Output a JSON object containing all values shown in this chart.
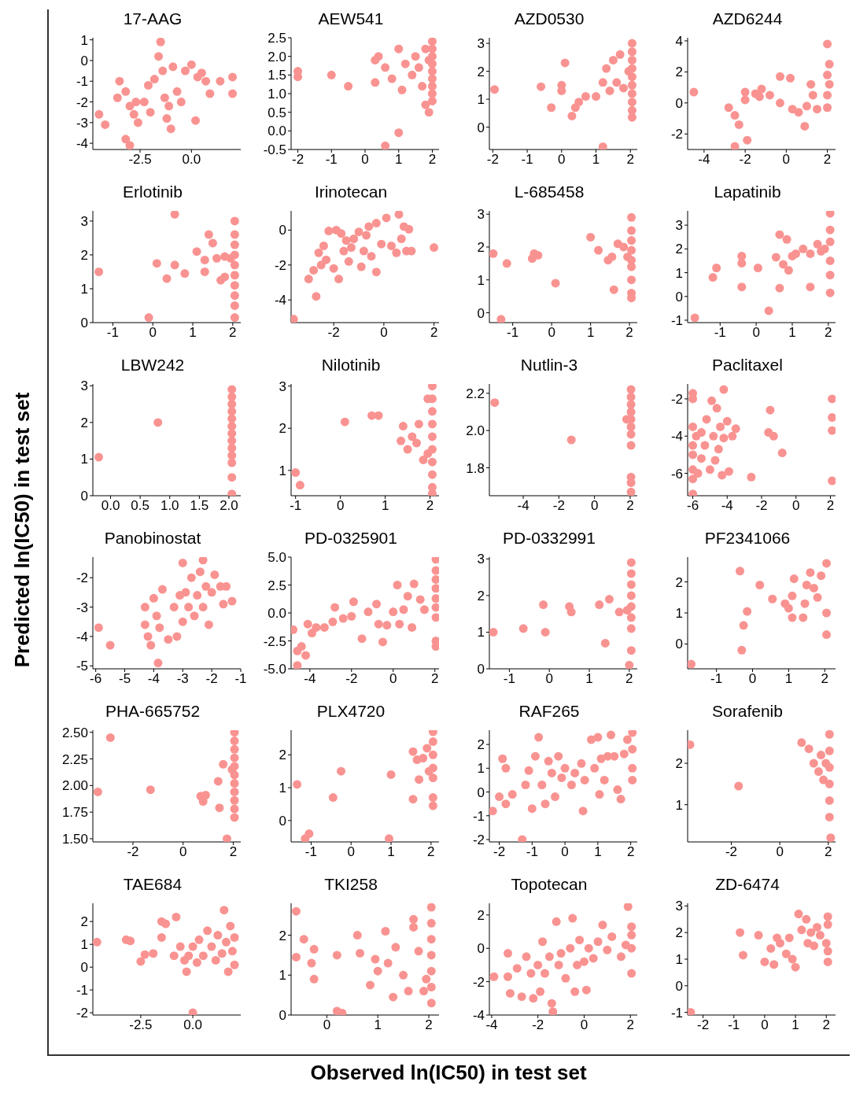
{
  "chart_data": [
    {
      "type": "scatter",
      "title": "17-AAG",
      "color": "#f99391",
      "xlim": [
        -4.8,
        2.4
      ],
      "xticks": [
        {
          "value": -2.5,
          "label": "-2.5"
        },
        {
          "value": 0,
          "label": "0.0"
        }
      ],
      "ylim": [
        -4.3,
        1.1
      ],
      "yticks": [
        -4,
        -3,
        -2,
        -1,
        0,
        1
      ],
      "x": [
        -4.5,
        -4.2,
        -3.5,
        -3.6,
        -3.2,
        -3.0,
        -2.8,
        -2.6,
        -2.3,
        -2.1,
        -2.0,
        -1.8,
        -1.6,
        -1.5,
        -1.4,
        -1.3,
        -1.1,
        -1.0,
        -0.9,
        -0.7,
        -0.5,
        -0.3,
        0.0,
        0.2,
        0.3,
        0.7,
        0.9,
        1.4,
        2.0,
        2.0,
        -3.2,
        -3.0,
        -2.7,
        -1.2,
        0.5
      ],
      "values": [
        -2.6,
        -3.1,
        -1.0,
        -1.8,
        -1.5,
        -2.2,
        -2.6,
        -3.0,
        -2.0,
        -1.2,
        -2.5,
        -0.9,
        0.2,
        0.9,
        -0.5,
        -1.8,
        -2.2,
        -3.3,
        -0.3,
        -1.5,
        -2.0,
        -0.5,
        -0.2,
        -2.9,
        -0.8,
        -1.0,
        -1.6,
        -1.0,
        -0.8,
        -1.6,
        -3.8,
        -4.1,
        -2.0,
        -2.8,
        -0.6
      ]
    },
    {
      "type": "scatter",
      "title": "AEW541",
      "color": "#f99391",
      "xlim": [
        -2.2,
        2.2
      ],
      "xticks": [
        -2,
        -1,
        0,
        1,
        2
      ],
      "ylim": [
        -0.5,
        2.5
      ],
      "yticks": [
        {
          "value": -0.5,
          "label": "-0.5"
        },
        {
          "value": 0,
          "label": "0.0"
        },
        {
          "value": 0.5,
          "label": "0.5"
        },
        {
          "value": 1,
          "label": "1.0"
        },
        {
          "value": 1.5,
          "label": "1.5"
        },
        {
          "value": 2,
          "label": "2.0"
        },
        {
          "value": 2.5,
          "label": "2.5"
        }
      ],
      "x": [
        -2,
        -2,
        -1,
        -0.5,
        0.3,
        0.4,
        0.3,
        0.6,
        1.0,
        0.6,
        0.8,
        1,
        1.1,
        1.2,
        1.4,
        1.5,
        1.6,
        1.7,
        1.8,
        1.9,
        2,
        2,
        2,
        2,
        2,
        2,
        2,
        2,
        2,
        1.9,
        1.8
      ],
      "values": [
        1.6,
        1.45,
        1.5,
        1.2,
        1.9,
        2.0,
        1.3,
        -0.4,
        -0.05,
        1.7,
        1.4,
        2.2,
        1.1,
        1.8,
        1.5,
        2.0,
        1.7,
        1.2,
        0.7,
        0.5,
        2.4,
        2.2,
        2.0,
        1.8,
        1.6,
        1.4,
        1.2,
        1.0,
        0.8,
        1.9,
        2.2
      ]
    },
    {
      "type": "scatter",
      "title": "AZD0530",
      "color": "#f99391",
      "xlim": [
        -2.1,
        2.2
      ],
      "xticks": [
        -2,
        -1,
        0,
        1,
        2
      ],
      "ylim": [
        -0.8,
        3.2
      ],
      "yticks": [
        0,
        1,
        2,
        3
      ],
      "x": [
        -1.95,
        -0.6,
        0,
        0,
        0.1,
        -0.3,
        0.3,
        0.4,
        0.5,
        0.7,
        1.0,
        1.2,
        1.2,
        1.3,
        1.4,
        1.5,
        1.6,
        1.7,
        1.8,
        2.05,
        2.05,
        2.05,
        2.05,
        2.05,
        2.05,
        2.05,
        2.05,
        2.05,
        2.05,
        1.95
      ],
      "values": [
        1.35,
        1.45,
        1.5,
        1.3,
        2.3,
        0.7,
        0.4,
        0.7,
        0.9,
        1.1,
        1.1,
        -0.7,
        1.6,
        2.1,
        1.3,
        2.4,
        1.6,
        2.6,
        1.4,
        3.0,
        2.7,
        2.4,
        2.1,
        1.8,
        1.5,
        1.2,
        0.9,
        0.6,
        0.35,
        2.0
      ]
    },
    {
      "type": "scatter",
      "title": "AZD6244",
      "color": "#f99391",
      "xlim": [
        -4.8,
        2.4
      ],
      "xticks": [
        -4,
        -2,
        0,
        2
      ],
      "ylim": [
        -3,
        4.2
      ],
      "yticks": [
        -2,
        0,
        2,
        4
      ],
      "x": [
        -4.5,
        -2.8,
        -2.5,
        -2.3,
        -2.5,
        -1.9,
        -2.0,
        -2.0,
        -1.5,
        -1.2,
        -1.3,
        -0.8,
        -0.3,
        -0.3,
        0.2,
        0.3,
        0.6,
        0.9,
        1.0,
        1.2,
        1.3,
        1.5,
        2,
        2,
        2,
        2,
        2.1,
        2.1
      ],
      "values": [
        0.7,
        -0.3,
        -0.8,
        -1.4,
        -2.8,
        -2.4,
        0.7,
        0.2,
        0.6,
        0.9,
        0.4,
        0.5,
        0.0,
        1.7,
        1.6,
        -0.4,
        -0.6,
        -1.5,
        -0.2,
        1.2,
        0.5,
        -0.4,
        3.8,
        1.8,
        0.5,
        -0.3,
        1.2,
        2.5
      ]
    },
    {
      "type": "scatter",
      "title": "Erlotinib",
      "color": "#f99391",
      "xlim": [
        -1.5,
        2.2
      ],
      "xticks": [
        -1,
        0,
        1,
        2
      ],
      "ylim": [
        0,
        3.3
      ],
      "yticks": [
        0,
        1,
        2,
        3
      ],
      "x": [
        -1.35,
        -0.1,
        0.1,
        0.35,
        0.55,
        0.55,
        0.8,
        1.1,
        1.3,
        1.3,
        1.4,
        1.5,
        1.6,
        1.7,
        1.8,
        1.8,
        2.05,
        2.05,
        2.05,
        2.05,
        2.05,
        2.05,
        2.05,
        2.05,
        2.05,
        2.05,
        1.95
      ],
      "values": [
        1.5,
        0.15,
        1.75,
        1.3,
        1.7,
        3.2,
        1.45,
        2.1,
        1.5,
        1.85,
        2.6,
        2.35,
        1.9,
        1.25,
        1.35,
        1.95,
        3.0,
        2.6,
        2.3,
        2.0,
        1.7,
        1.4,
        1.1,
        0.8,
        0.5,
        0.15,
        1.9
      ]
    },
    {
      "type": "scatter",
      "title": "Irinotecan",
      "color": "#f99391",
      "xlim": [
        -3.7,
        2.2
      ],
      "xticks": [
        -2,
        0,
        2
      ],
      "ylim": [
        -5.3,
        1.1
      ],
      "yticks": [
        -4,
        -2,
        0
      ],
      "x": [
        -3.6,
        -3.0,
        -2.7,
        -2.8,
        -2.6,
        -2.5,
        -2.4,
        -2.3,
        -2.2,
        -2.0,
        -1.9,
        -1.8,
        -1.7,
        -1.6,
        -1.5,
        -1.4,
        -1.3,
        -1.2,
        -1.0,
        -0.9,
        -0.8,
        -0.7,
        -0.6,
        -0.5,
        -0.3,
        -0.3,
        -0.1,
        0.1,
        0.3,
        0.5,
        0.6,
        0.7,
        0.8,
        0.9,
        1.0,
        1.1,
        2.0
      ],
      "values": [
        -5.1,
        -2.8,
        -3.8,
        -2.3,
        -1.3,
        -2.0,
        -0.9,
        -1.7,
        -0.05,
        -2.2,
        0.0,
        -2.8,
        -0.2,
        -1.2,
        -0.6,
        -1.8,
        -1.0,
        -0.5,
        -0.1,
        -2.1,
        -1.2,
        -0.3,
        0.2,
        -1.5,
        -2.4,
        0.4,
        -0.8,
        0.7,
        -0.9,
        -1.3,
        0.9,
        -0.5,
        0.2,
        -1.2,
        0.05,
        -1.2,
        -1.0
      ]
    },
    {
      "type": "scatter",
      "title": "L-685458",
      "color": "#f99391",
      "xlim": [
        -1.6,
        2.2
      ],
      "xticks": [
        -1,
        0,
        1,
        2
      ],
      "ylim": [
        -0.3,
        3.1
      ],
      "yticks": [
        0,
        1,
        2,
        3
      ],
      "x": [
        -1.5,
        -1.3,
        -1.15,
        -0.5,
        -0.45,
        -0.35,
        0.1,
        1.0,
        1.2,
        1.45,
        1.55,
        1.6,
        1.7,
        1.85,
        2.05,
        2.05,
        2.05,
        2.05,
        2.05,
        2.05,
        2.05,
        2.05,
        2.05,
        1.95
      ],
      "values": [
        1.8,
        -0.2,
        1.5,
        1.65,
        1.8,
        1.75,
        0.9,
        2.3,
        1.9,
        1.6,
        1.7,
        0.7,
        2.1,
        2.0,
        2.9,
        2.5,
        2.2,
        1.9,
        1.6,
        1.4,
        1.0,
        0.6,
        0.45,
        1.7
      ]
    },
    {
      "type": "scatter",
      "title": "Lapatinib",
      "color": "#f99391",
      "xlim": [
        -1.9,
        2.2
      ],
      "xticks": [
        -1,
        0,
        1,
        2
      ],
      "ylim": [
        -1.1,
        3.6
      ],
      "yticks": [
        -1,
        0,
        1,
        2,
        3
      ],
      "x": [
        -1.7,
        -1.2,
        -1.1,
        -0.4,
        -0.4,
        -0.4,
        0.05,
        0.35,
        0.55,
        0.65,
        0.65,
        0.75,
        0.85,
        0.9,
        1.0,
        1.1,
        1.3,
        1.5,
        1.5,
        1.7,
        1.8,
        1.9,
        2.05,
        2.05,
        2.05,
        2.05,
        2.05,
        2.05
      ],
      "values": [
        -0.9,
        0.8,
        1.2,
        1.4,
        1.7,
        0.4,
        1.2,
        -0.6,
        1.65,
        2.6,
        0.35,
        1.35,
        2.4,
        1.1,
        1.7,
        1.8,
        2.0,
        0.4,
        1.8,
        2.2,
        1.9,
        2.0,
        3.5,
        2.8,
        2.3,
        1.5,
        0.9,
        0.15
      ]
    },
    {
      "type": "scatter",
      "title": "LBW242",
      "color": "#f99391",
      "xlim": [
        -0.3,
        2.2
      ],
      "xticks": [
        {
          "value": 0,
          "label": "0.0"
        },
        {
          "value": 0.5,
          "label": "0.5"
        },
        {
          "value": 1,
          "label": "1.0"
        },
        {
          "value": 1.5,
          "label": "1.5"
        },
        {
          "value": 2,
          "label": "2.0"
        }
      ],
      "ylim": [
        0,
        3.05
      ],
      "yticks": [
        0,
        1,
        2,
        3
      ],
      "x": [
        -0.2,
        0.8,
        2.05,
        2.05,
        2.05,
        2.05,
        2.05,
        2.05,
        2.05,
        2.05,
        2.05,
        2.05,
        2.05,
        2.05,
        2.05
      ],
      "values": [
        1.05,
        2.0,
        2.9,
        2.7,
        2.5,
        2.3,
        2.1,
        1.9,
        1.7,
        1.5,
        1.3,
        1.1,
        0.9,
        0.5,
        0.05
      ]
    },
    {
      "type": "scatter",
      "title": "Nilotinib",
      "color": "#f99391",
      "xlim": [
        -1.1,
        2.2
      ],
      "xticks": [
        -1,
        0,
        1,
        2
      ],
      "ylim": [
        0.4,
        3.05
      ],
      "yticks": [
        1,
        2,
        3
      ],
      "x": [
        -1.0,
        -0.9,
        0.1,
        0.7,
        0.85,
        1.4,
        1.35,
        1.5,
        1.6,
        1.7,
        1.75,
        1.85,
        2.05,
        2.05,
        2.05,
        2.05,
        2.05,
        2.05,
        2.05,
        2.05,
        2.05,
        2.05,
        1.95,
        1.95
      ],
      "values": [
        0.95,
        0.65,
        2.15,
        2.3,
        2.3,
        2.05,
        1.7,
        1.5,
        1.8,
        1.65,
        2.1,
        1.25,
        3.0,
        2.7,
        2.4,
        2.1,
        1.8,
        1.5,
        1.2,
        0.9,
        0.6,
        0.45,
        2.7,
        1.4
      ]
    },
    {
      "type": "scatter",
      "title": "Nutlin-3",
      "color": "#f99391",
      "xlim": [
        -5.9,
        2.4
      ],
      "xticks": [
        -4,
        -2,
        0,
        2
      ],
      "ylim": [
        1.65,
        2.25
      ],
      "yticks": [
        {
          "value": 1.8,
          "label": "1.8"
        },
        {
          "value": 2,
          "label": "2.0"
        },
        {
          "value": 2.2,
          "label": "2.2"
        }
      ],
      "x": [
        -5.6,
        -1.3,
        1.8,
        2.05,
        2.05,
        2.05,
        2.05,
        2.05,
        2.05,
        2.05,
        2.05,
        2.05,
        2.05,
        2.05
      ],
      "values": [
        2.15,
        1.95,
        2.06,
        2.22,
        2.18,
        2.14,
        2.1,
        2.06,
        2.02,
        1.98,
        1.92,
        1.75,
        1.72,
        1.67
      ]
    },
    {
      "type": "scatter",
      "title": "Paclitaxel",
      "color": "#f99391",
      "xlim": [
        -6.3,
        2.3
      ],
      "xticks": [
        -6,
        -4,
        -2,
        0,
        2
      ],
      "ylim": [
        -7.2,
        -1.2
      ],
      "yticks": [
        -6,
        -4,
        -2
      ],
      "x": [
        -6,
        -6,
        -6,
        -6,
        -6,
        -6,
        -6,
        -6,
        -5.8,
        -5.7,
        -5.5,
        -5.5,
        -5.3,
        -5.2,
        -5.0,
        -4.9,
        -4.8,
        -4.7,
        -4.6,
        -4.5,
        -4.4,
        -4.3,
        -4.2,
        -4.2,
        -4.0,
        -3.9,
        -3.7,
        -3.5,
        -2.6,
        -1.5,
        -1.6,
        -1.3,
        -0.8,
        2.1,
        2.1,
        2.1,
        2.1
      ],
      "values": [
        -1.7,
        -2.0,
        -3.5,
        -4.5,
        -5.0,
        -5.8,
        -6.3,
        -7.1,
        -4.0,
        -6.0,
        -3.8,
        -5.2,
        -4.5,
        -3.1,
        -5.8,
        -2.1,
        -4.0,
        -5.3,
        -2.5,
        -4.7,
        -3.5,
        -6.1,
        -1.5,
        -4.1,
        -3.2,
        -5.9,
        -4.0,
        -3.6,
        -6.2,
        -2.6,
        -3.8,
        -4.0,
        -4.9,
        -2.0,
        -3.0,
        -3.7,
        -6.4
      ]
    },
    {
      "type": "scatter",
      "title": "Panobinostat",
      "color": "#f99391",
      "xlim": [
        -6.1,
        -1
      ],
      "xticks": [
        -6,
        -5,
        -4,
        -3,
        -2,
        -1
      ],
      "ylim": [
        -5.1,
        -1.3
      ],
      "yticks": [
        -5,
        -4,
        -3,
        -2
      ],
      "x": [
        -5.9,
        -5.5,
        -4.3,
        -4.3,
        -4.2,
        -4.1,
        -4.0,
        -3.9,
        -3.85,
        -3.8,
        -3.7,
        -3.5,
        -3.3,
        -3.2,
        -3.1,
        -3.0,
        -3.0,
        -2.9,
        -2.8,
        -2.7,
        -2.6,
        -2.5,
        -2.4,
        -2.3,
        -2.2,
        -2.1,
        -2.0,
        -1.9,
        -1.7,
        -1.6,
        -1.5,
        -1.3,
        -2.3
      ],
      "values": [
        -3.7,
        -4.3,
        -3.0,
        -3.6,
        -4.0,
        -4.3,
        -2.7,
        -3.3,
        -4.9,
        -3.7,
        -2.4,
        -4.1,
        -3.0,
        -4.0,
        -2.6,
        -3.5,
        -1.5,
        -2.5,
        -3.0,
        -2.0,
        -3.3,
        -2.6,
        -1.8,
        -3.0,
        -2.3,
        -3.6,
        -2.5,
        -1.9,
        -2.3,
        -2.9,
        -2.3,
        -2.8,
        -1.4
      ]
    },
    {
      "type": "scatter",
      "title": "PD-0325901",
      "color": "#f99391",
      "xlim": [
        -4.9,
        2.2
      ],
      "xticks": [
        -4,
        -2,
        0,
        2
      ],
      "ylim": [
        -5,
        5
      ],
      "yticks": [
        {
          "value": -5,
          "label": "-5.0"
        },
        {
          "value": -2.5,
          "label": "-2.5"
        },
        {
          "value": 0,
          "label": "0.0"
        },
        {
          "value": 2.5,
          "label": "2.5"
        },
        {
          "value": 5,
          "label": "5.0"
        }
      ],
      "x": [
        -4.8,
        -4.6,
        -4.6,
        -4.4,
        -4.2,
        -4.1,
        -3.9,
        -3.7,
        -3.3,
        -2.9,
        -2.8,
        -2.4,
        -2.0,
        -1.9,
        -1.5,
        -1.2,
        -0.8,
        -0.7,
        -0.5,
        -0.3,
        0.0,
        0.2,
        0.3,
        0.5,
        0.7,
        0.9,
        1.0,
        1.3,
        1.5,
        2.05,
        2.05,
        2.05,
        2.05,
        2.05,
        2.05,
        2.05,
        2.05,
        2.05
      ],
      "values": [
        -1.5,
        -3.4,
        -4.7,
        -3.0,
        -3.8,
        -1.0,
        -1.8,
        -1.3,
        -1.3,
        -0.8,
        0.5,
        -0.5,
        -0.3,
        1.0,
        -2.3,
        0.1,
        0.8,
        -1.0,
        -2.6,
        -1.1,
        0.1,
        2.5,
        -1.0,
        0.3,
        1.5,
        -1.3,
        2.6,
        1.2,
        0.3,
        4.8,
        3.8,
        3.0,
        2.2,
        1.3,
        0.5,
        -0.4,
        -2.5,
        -3.0
      ]
    },
    {
      "type": "scatter",
      "title": "PD-0332991",
      "color": "#f99391",
      "xlim": [
        -1.5,
        2.2
      ],
      "xticks": [
        -1,
        0,
        1,
        2
      ],
      "ylim": [
        0,
        3.05
      ],
      "yticks": [
        0,
        1,
        2,
        3
      ],
      "x": [
        -1.4,
        -0.65,
        -0.15,
        -0.1,
        0.5,
        0.55,
        1.25,
        1.4,
        1.5,
        1.75,
        2.05,
        2.05,
        2.05,
        2.05,
        2.05,
        2.05,
        2.05,
        2.05,
        2.0,
        1.95
      ],
      "values": [
        1.0,
        1.1,
        1.75,
        1.0,
        1.7,
        1.55,
        1.75,
        0.7,
        1.9,
        1.55,
        2.9,
        2.6,
        2.3,
        2.0,
        1.7,
        1.4,
        1.1,
        0.5,
        0.1,
        1.6
      ]
    },
    {
      "type": "scatter",
      "title": "PF2341066",
      "color": "#f99391",
      "xlim": [
        -1.8,
        2.3
      ],
      "xticks": [
        -1,
        0,
        1,
        2
      ],
      "ylim": [
        -0.8,
        2.8
      ],
      "yticks": [
        0,
        1,
        2
      ],
      "x": [
        -1.7,
        -0.35,
        -0.3,
        -0.25,
        -0.15,
        0.2,
        0.55,
        0.9,
        1.0,
        1.1,
        1.1,
        1.15,
        1.4,
        1.45,
        1.5,
        1.6,
        1.7,
        1.8,
        1.9,
        2.05,
        2.05,
        2.05
      ],
      "values": [
        -0.65,
        2.35,
        -0.2,
        0.6,
        1.05,
        1.9,
        1.45,
        1.3,
        1.15,
        1.55,
        0.85,
        2.1,
        0.85,
        1.3,
        1.9,
        2.3,
        1.8,
        1.5,
        2.2,
        2.6,
        1.0,
        0.3
      ]
    },
    {
      "type": "scatter",
      "title": "PHA-665752",
      "color": "#f99391",
      "xlim": [
        -3.6,
        2.3
      ],
      "xticks": [
        -2,
        0,
        2
      ],
      "ylim": [
        1.47,
        2.52
      ],
      "yticks": [
        {
          "value": 1.5,
          "label": "1.50"
        },
        {
          "value": 1.75,
          "label": "1.75"
        },
        {
          "value": 2,
          "label": "2.00"
        },
        {
          "value": 2.25,
          "label": "2.25"
        },
        {
          "value": 2.5,
          "label": "2.50"
        }
      ],
      "x": [
        -3.4,
        -2.9,
        -1.3,
        0.7,
        0.8,
        0.9,
        1.4,
        1.45,
        1.6,
        1.75,
        2.05,
        2.05,
        2.05,
        2.05,
        2.05,
        2.05,
        2.05,
        2.05,
        2.05,
        2.05,
        2.05,
        1.95
      ],
      "values": [
        1.94,
        2.45,
        1.96,
        1.9,
        1.85,
        1.91,
        2.04,
        1.79,
        2.2,
        1.5,
        2.5,
        2.42,
        2.34,
        2.26,
        2.18,
        2.1,
        2.02,
        1.94,
        1.86,
        1.78,
        1.7,
        2.15
      ]
    },
    {
      "type": "scatter",
      "title": "PLX4720",
      "color": "#f99391",
      "xlim": [
        -1.5,
        2.2
      ],
      "xticks": [
        -1,
        0,
        1,
        2
      ],
      "ylim": [
        -0.65,
        2.75
      ],
      "yticks": [
        0,
        1,
        2
      ],
      "x": [
        -1.35,
        -1.15,
        -1.05,
        -0.45,
        -0.25,
        0.95,
        1.0,
        1.55,
        1.55,
        1.65,
        1.7,
        1.8,
        1.9,
        2.05,
        2.05,
        2.05,
        2.05,
        2.05,
        2.05,
        2.05,
        1.95
      ],
      "values": [
        1.1,
        -0.55,
        -0.4,
        0.7,
        1.5,
        -0.55,
        1.4,
        2.1,
        0.65,
        1.85,
        1.25,
        1.9,
        2.2,
        2.7,
        2.4,
        2.0,
        1.6,
        1.3,
        0.7,
        0.45,
        1.5
      ]
    },
    {
      "type": "scatter",
      "title": "RAF265",
      "color": "#f99391",
      "xlim": [
        -2.3,
        2.2
      ],
      "xticks": [
        -2,
        -1,
        0,
        1,
        2
      ],
      "ylim": [
        -2.1,
        2.6
      ],
      "yticks": [
        -2,
        -1,
        0,
        1,
        2
      ],
      "x": [
        -2.2,
        -2.0,
        -1.9,
        -1.8,
        -1.8,
        -1.6,
        -1.3,
        -1.2,
        -1.1,
        -1.0,
        -0.9,
        -0.8,
        -0.7,
        -0.6,
        -0.5,
        -0.4,
        -0.3,
        -0.2,
        -0.1,
        0.0,
        0.2,
        0.3,
        0.5,
        0.55,
        0.6,
        0.8,
        0.9,
        1.0,
        1.05,
        1.1,
        1.2,
        1.3,
        1.4,
        1.5,
        1.6,
        1.7,
        1.8,
        1.9,
        2.05,
        2.05,
        2.05,
        2.05
      ],
      "values": [
        -0.8,
        -0.2,
        1.4,
        1.0,
        -0.5,
        -0.1,
        -2.0,
        0.3,
        0.9,
        -0.7,
        1.5,
        2.3,
        0.3,
        -0.5,
        1.3,
        0.8,
        -0.2,
        1.5,
        0.6,
        1.0,
        0.3,
        0.8,
        1.2,
        -0.8,
        0.5,
        2.2,
        1.0,
        2.3,
        -0.1,
        1.4,
        0.5,
        1.5,
        2.4,
        1.5,
        0.1,
        -0.3,
        1.6,
        2.2,
        2.5,
        1.8,
        1.0,
        0.5
      ]
    },
    {
      "type": "scatter",
      "title": "Sorafenib",
      "color": "#f99391",
      "xlim": [
        -3.8,
        2.3
      ],
      "xticks": [
        -2,
        0,
        2
      ],
      "ylim": [
        0.1,
        2.8
      ],
      "yticks": [
        1,
        2
      ],
      "x": [
        -3.7,
        -1.7,
        0.9,
        1.2,
        1.4,
        1.6,
        1.7,
        1.8,
        1.9,
        2.05,
        2.05,
        2.05,
        2.05,
        2.05,
        2.05,
        2.1
      ],
      "values": [
        2.45,
        1.45,
        2.5,
        2.35,
        2.0,
        1.8,
        2.2,
        1.6,
        2.0,
        2.7,
        2.3,
        1.9,
        1.5,
        1.1,
        0.7,
        0.2
      ]
    },
    {
      "type": "scatter",
      "title": "TAE684",
      "color": "#f99391",
      "xlim": [
        -4.8,
        2.3
      ],
      "xticks": [
        {
          "value": -2.5,
          "label": "-2.5"
        },
        {
          "value": 0,
          "label": "0.0"
        }
      ],
      "ylim": [
        -2.1,
        2.8
      ],
      "yticks": [
        -2,
        -1,
        0,
        1,
        2
      ],
      "x": [
        -4.6,
        -3.2,
        -3.0,
        -2.5,
        -2.3,
        -1.9,
        -1.5,
        -1.5,
        -1.3,
        -0.8,
        -0.9,
        -0.6,
        -0.4,
        -0.3,
        -0.2,
        0.0,
        0.0,
        0.2,
        0.3,
        0.5,
        0.7,
        0.9,
        1.1,
        1.2,
        1.4,
        1.5,
        1.6,
        1.7,
        1.8,
        1.9,
        2.0,
        2.0
      ],
      "values": [
        1.1,
        1.2,
        1.15,
        0.25,
        0.55,
        0.6,
        1.3,
        2.0,
        1.9,
        2.2,
        0.5,
        0.9,
        0.3,
        -0.2,
        0.5,
        -2.0,
        0.9,
        0.2,
        1.2,
        0.5,
        1.6,
        0.9,
        0.3,
        1.4,
        0.6,
        2.5,
        1.1,
        -0.2,
        1.8,
        0.7,
        1.3,
        0.1
      ]
    },
    {
      "type": "scatter",
      "title": "TKI258",
      "color": "#f99391",
      "xlim": [
        -0.7,
        2.2
      ],
      "xticks": [
        0,
        1,
        2
      ],
      "ylim": [
        0,
        2.8
      ],
      "yticks": [
        0,
        1,
        2
      ],
      "x": [
        -0.6,
        -0.6,
        -0.45,
        -0.3,
        -0.25,
        -0.25,
        0.2,
        0.2,
        0.3,
        0.6,
        0.65,
        0.85,
        0.95,
        1.0,
        1.15,
        1.2,
        1.3,
        1.35,
        1.5,
        1.6,
        1.7,
        1.7,
        1.8,
        1.9,
        2.05,
        2.05,
        2.05,
        2.05,
        2.05,
        2.05,
        2.05,
        1.95
      ],
      "values": [
        2.6,
        1.45,
        1.9,
        1.3,
        0.9,
        1.65,
        1.5,
        0.1,
        0.05,
        2.0,
        1.55,
        0.75,
        1.4,
        1.1,
        2.1,
        1.3,
        0.45,
        1.7,
        1.0,
        0.6,
        2.2,
        2.4,
        1.6,
        0.6,
        2.7,
        2.3,
        1.9,
        1.5,
        1.1,
        0.7,
        0.3,
        0.9
      ]
    },
    {
      "type": "scatter",
      "title": "Topotecan",
      "color": "#f99391",
      "xlim": [
        -4.1,
        2.3
      ],
      "xticks": [
        -4,
        -2,
        0,
        2
      ],
      "ylim": [
        -4,
        2.7
      ],
      "yticks": [
        -4,
        -2,
        0,
        2
      ],
      "x": [
        -3.9,
        -3.3,
        -3.3,
        -3.2,
        -2.9,
        -2.7,
        -2.5,
        -2.3,
        -2.2,
        -2.0,
        -1.9,
        -1.8,
        -1.7,
        -1.5,
        -1.4,
        -1.35,
        -1.2,
        -1.1,
        -1.0,
        -0.8,
        -0.6,
        -0.5,
        -0.4,
        -0.3,
        -0.2,
        0.0,
        0.1,
        0.2,
        0.4,
        0.6,
        0.8,
        1.0,
        1.2,
        1.6,
        1.8,
        1.9,
        2.05,
        2.05,
        2.05,
        2.05
      ],
      "values": [
        -1.7,
        -0.3,
        -1.7,
        -2.7,
        -1.2,
        -2.9,
        -0.5,
        -1.5,
        -3.0,
        -1.0,
        -2.6,
        0.4,
        -1.5,
        -0.5,
        -3.3,
        -3.8,
        1.6,
        -1.0,
        -0.3,
        -1.8,
        0.0,
        1.8,
        -2.6,
        -1.0,
        0.5,
        -0.8,
        -2.5,
        0.0,
        -0.6,
        0.4,
        1.4,
        -0.1,
        0.7,
        -0.5,
        0.2,
        2.5,
        1.3,
        0.8,
        0.0,
        -1.5
      ]
    },
    {
      "type": "scatter",
      "title": "ZD-6474",
      "color": "#f99391",
      "xlim": [
        -2.5,
        2.3
      ],
      "xticks": [
        -2,
        -1,
        0,
        1,
        2
      ],
      "ylim": [
        -1.1,
        3.1
      ],
      "yticks": [
        -1,
        0,
        1,
        2,
        3
      ],
      "x": [
        -2.4,
        -0.8,
        -0.7,
        -0.2,
        0.0,
        0.2,
        0.3,
        0.4,
        0.5,
        0.7,
        0.8,
        0.9,
        1.0,
        1.1,
        1.2,
        1.35,
        1.4,
        1.5,
        1.6,
        1.7,
        1.8,
        2.0,
        2.05,
        2.05,
        2.05,
        2.05
      ],
      "values": [
        -1.0,
        2.0,
        1.15,
        1.9,
        0.9,
        1.4,
        0.8,
        1.8,
        1.6,
        1.2,
        1.8,
        1.0,
        0.7,
        2.7,
        2.1,
        2.5,
        1.6,
        2.0,
        1.5,
        2.2,
        1.9,
        1.6,
        2.6,
        2.3,
        1.3,
        0.9
      ]
    },
    {
      "type": "other",
      "xlabel": "Observed ln(IC50) in test set",
      "ylabel": "Predicted ln(IC50) in test set"
    }
  ]
}
